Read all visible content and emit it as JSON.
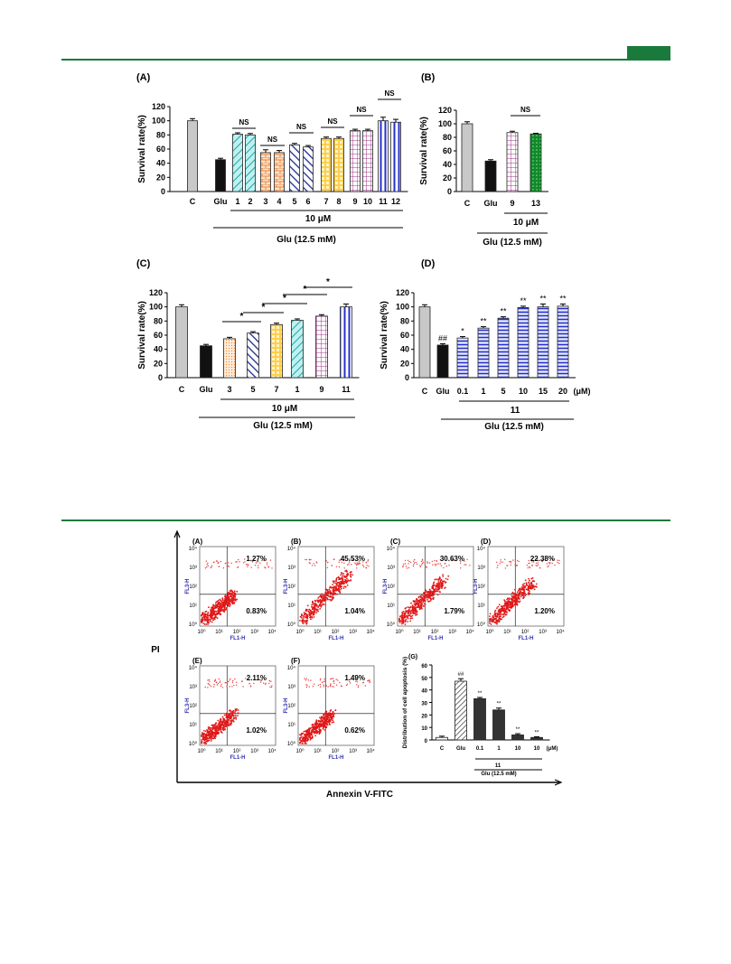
{
  "colors": {
    "accent": "#1a7a3c"
  },
  "chart_data": [
    {
      "panel": "(A)",
      "type": "bar",
      "ylabel": "Survival rate(%)",
      "ylim": [
        0,
        120
      ],
      "yticks": [
        0,
        20,
        40,
        60,
        80,
        100,
        120
      ],
      "categories": [
        "C",
        "Glu",
        "1",
        "2",
        "3",
        "4",
        "5",
        "6",
        "7",
        "8",
        "9",
        "10",
        "11",
        "12"
      ],
      "values": [
        100,
        45,
        81,
        80,
        55,
        55,
        66,
        63,
        75,
        75,
        86,
        86,
        100,
        98
      ],
      "errors": [
        3,
        2,
        2,
        2,
        4,
        3,
        2,
        2,
        2,
        2,
        2,
        2,
        5,
        4
      ],
      "annotations": [
        "NS",
        "NS",
        "NS",
        "NS",
        "NS",
        "NS"
      ],
      "group_label": "10 μM",
      "condition_label": "Glu (12.5 mM)"
    },
    {
      "panel": "(B)",
      "type": "bar",
      "ylabel": "Survival rate(%)",
      "ylim": [
        0,
        120
      ],
      "yticks": [
        0,
        20,
        40,
        60,
        80,
        100,
        120
      ],
      "categories": [
        "C",
        "Glu",
        "9",
        "13"
      ],
      "values": [
        100,
        45,
        87,
        85
      ],
      "errors": [
        3,
        2,
        2,
        1
      ],
      "annotations": [
        "NS"
      ],
      "group_label": "10 μM",
      "condition_label": "Glu (12.5 mM)"
    },
    {
      "panel": "(C)",
      "type": "bar",
      "ylabel": "Survival rate(%)",
      "ylim": [
        0,
        120
      ],
      "yticks": [
        0,
        20,
        40,
        60,
        80,
        100,
        120
      ],
      "categories": [
        "C",
        "Glu",
        "3",
        "5",
        "7",
        "1",
        "9",
        "11"
      ],
      "values": [
        100,
        45,
        55,
        63,
        75,
        81,
        87,
        100
      ],
      "errors": [
        3,
        2,
        2,
        2,
        2,
        2,
        2,
        4
      ],
      "annotations": [
        "*",
        "*",
        "*",
        "*",
        "*"
      ],
      "group_label": "10 μM",
      "condition_label": "Glu (12.5 mM)"
    },
    {
      "panel": "(D)",
      "type": "bar",
      "ylabel": "Survival rate(%)",
      "ylim": [
        0,
        120
      ],
      "yticks": [
        0,
        20,
        40,
        60,
        80,
        100,
        120
      ],
      "categories": [
        "C",
        "Glu",
        "0.1",
        "1",
        "5",
        "10",
        "15",
        "20"
      ],
      "values": [
        100,
        46,
        56,
        70,
        84,
        99,
        100,
        101
      ],
      "errors": [
        3,
        2,
        2,
        2,
        2,
        2,
        4,
        3
      ],
      "bar_labels": [
        "",
        "##",
        "*",
        "**",
        "**",
        "**",
        "**",
        "**"
      ],
      "unit": "(μM)",
      "group_label": "11",
      "condition_label": "Glu (12.5 mM)"
    },
    {
      "panel": "(G)",
      "type": "bar",
      "ylabel": "Distribution of cell apoptosis (%)",
      "ylim": [
        0,
        60
      ],
      "yticks": [
        0,
        10,
        20,
        30,
        40,
        50,
        60
      ],
      "categories": [
        "C",
        "Glu",
        "0.1",
        "1",
        "10",
        "10"
      ],
      "values": [
        2,
        47,
        33,
        24,
        4,
        2
      ],
      "errors": [
        1,
        2,
        1,
        1.5,
        1,
        0.5
      ],
      "bar_labels": [
        "",
        "##",
        "**",
        "**",
        "**",
        "**"
      ],
      "unit": "(μM)",
      "group_label": "11",
      "condition_label": "Glu (12.5 mM)"
    }
  ],
  "flow": {
    "axis_y": "PI",
    "axis_x": "Annexin V-FITC",
    "x_channel": "FL1-H",
    "y_channel": "FL3-H",
    "panels": [
      {
        "label": "(A)",
        "upper_right": "1.27%",
        "lower_right": "0.83%"
      },
      {
        "label": "(B)",
        "upper_right": "45.53%",
        "lower_right": "1.04%"
      },
      {
        "label": "(C)",
        "upper_right": "30.63%",
        "lower_right": "1.79%"
      },
      {
        "label": "(D)",
        "upper_right": "22.38%",
        "lower_right": "1.20%"
      },
      {
        "label": "(E)",
        "upper_right": "2.11%",
        "lower_right": "1.02%"
      },
      {
        "label": "(F)",
        "upper_right": "1.49%",
        "lower_right": "0.62%"
      }
    ]
  }
}
